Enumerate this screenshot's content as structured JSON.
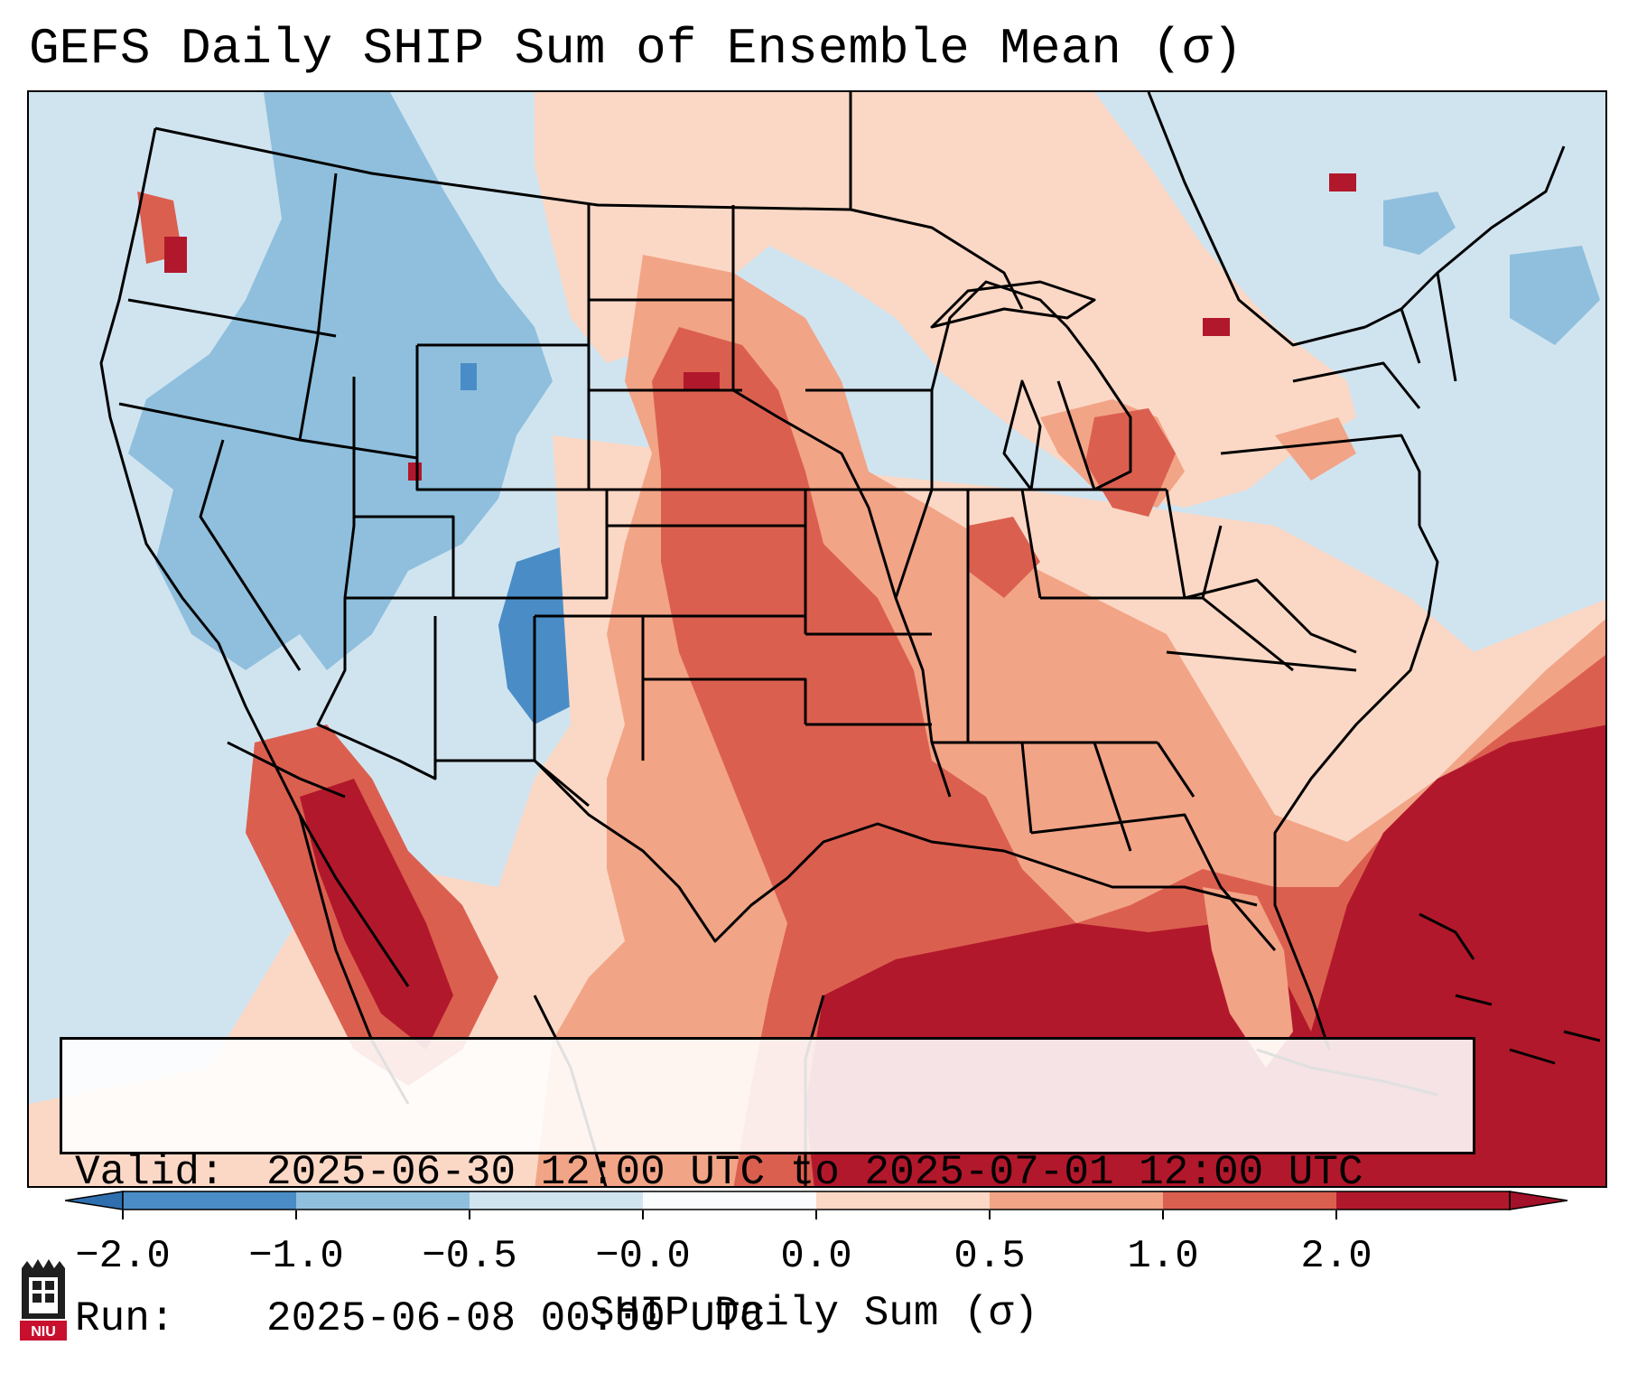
{
  "title": "GEFS Daily SHIP Sum of Ensemble Mean (σ)",
  "info": {
    "valid_label": "Valid:",
    "valid_value": "2025-06-30 12:00 UTC to 2025-07-01 12:00 UTC",
    "run_label": "Run:",
    "run_value": "2025-06-08 00:00 UTC"
  },
  "colorbar": {
    "title": "SHIP Daily Sum (σ)",
    "tick_labels": [
      "−2.0",
      "−1.0",
      "−0.5",
      "−0.0",
      "0.0",
      "0.5",
      "1.0",
      "2.0"
    ],
    "bins": [
      "#4a8dc6",
      "#8fbfdd",
      "#d0e4f0",
      "#fbfcfd",
      "#fbd8c5",
      "#f2a487",
      "#db5f4f",
      "#b2182b"
    ],
    "extend_colors": {
      "low": "#2f6fb0",
      "high": "#a2102a"
    }
  },
  "map": {
    "type": "gridded-field",
    "variable": "SHIP daily sum anomaly (σ)",
    "region": "CONUS",
    "colors": {
      "strong_negative": "#4a8dc6",
      "moderate_negative": "#8fbfdd",
      "weak_negative": "#d0e4f0",
      "weak_positive": "#fbd8c5",
      "moderate_positive": "#f2a487",
      "strong_positive": "#db5f4f",
      "very_strong_positive": "#b2182b",
      "boundary": "#000000"
    }
  },
  "logo": {
    "text": "NIU",
    "icon": "niu-logo-icon"
  }
}
